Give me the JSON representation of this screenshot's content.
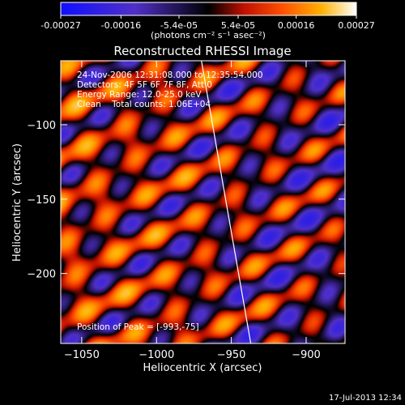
{
  "colorbar": {
    "tick_labels": [
      "-0.00027",
      "-0.00016",
      "-5.4e-05",
      "5.4e-05",
      "0.00016",
      "0.00027"
    ],
    "ticks": [
      -0.00027,
      -0.00016,
      -5.4e-05,
      5.4e-05,
      0.00016,
      0.00027
    ],
    "range": [
      -0.00027,
      0.00027
    ],
    "units": "(photons cm⁻² s⁻¹ asec⁻²)",
    "colors": [
      "#1010ff",
      "#5030c8",
      "#000000",
      "#c01000",
      "#ff5000",
      "#ffb000",
      "#ffffff"
    ]
  },
  "chart_data": {
    "type": "heatmap",
    "title": "Reconstructed RHESSI Image",
    "xlabel": "Heliocentric X (arcsec)",
    "ylabel": "Heliocentric Y (arcsec)",
    "xlim": [
      -1064,
      -874
    ],
    "ylim": [
      -247,
      -57
    ],
    "xticks": [
      -1050,
      -1000,
      -950,
      -900
    ],
    "yticks": [
      -100,
      -150,
      -200
    ],
    "xtick_labels": [
      "−1050",
      "−1000",
      "−950",
      "−900"
    ],
    "ytick_labels": [
      "−100",
      "−150",
      "−200"
    ],
    "limb_line": [
      [
        -970,
        -57
      ],
      [
        -937,
        -247
      ]
    ],
    "annotations": [
      "24-Nov-2006 12:31:08.000 to 12:35:54.000",
      "Detectors: 4F 5F 6F 7F 8F, Att 0",
      "Energy Range: 12.0-25.0 keV",
      "Clean    Total counts: 1.06E+04"
    ],
    "peak_label": "Position of Peak = [-993,-75]",
    "peak": [
      -993,
      -75
    ]
  },
  "footer": {
    "timestamp": "17-Jul-2013 12:34"
  }
}
